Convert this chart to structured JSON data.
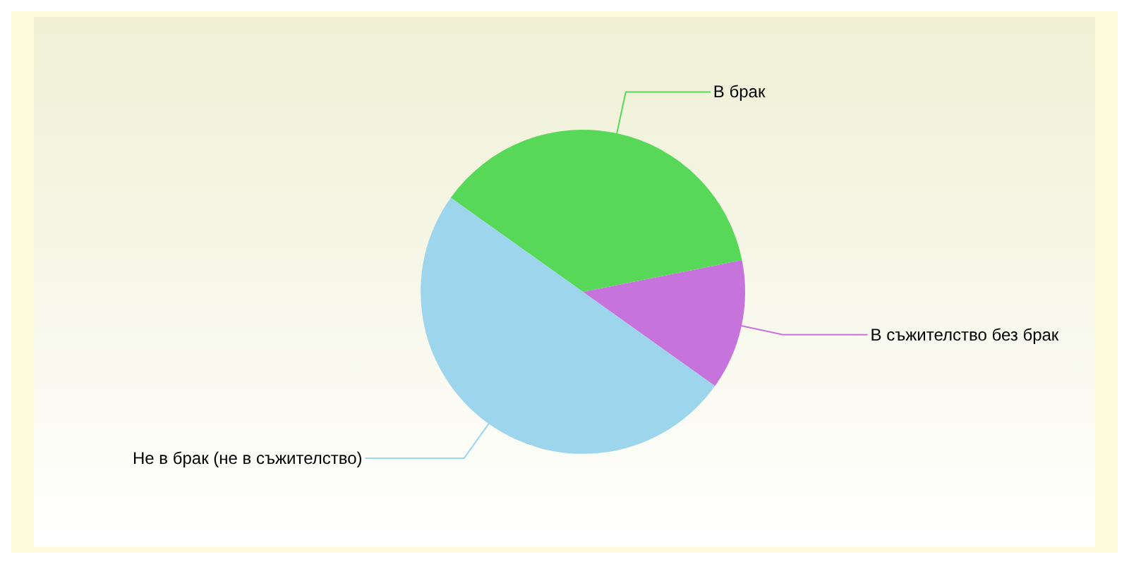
{
  "chart_data": {
    "type": "pie",
    "categories": [
      "В брак",
      "В съжителство без брак",
      "Не в брак (не в съжителство)"
    ],
    "values": [
      37,
      13,
      50
    ],
    "colors": [
      "#58d858",
      "#c674dc",
      "#9dd6ec"
    ],
    "legend": false
  }
}
